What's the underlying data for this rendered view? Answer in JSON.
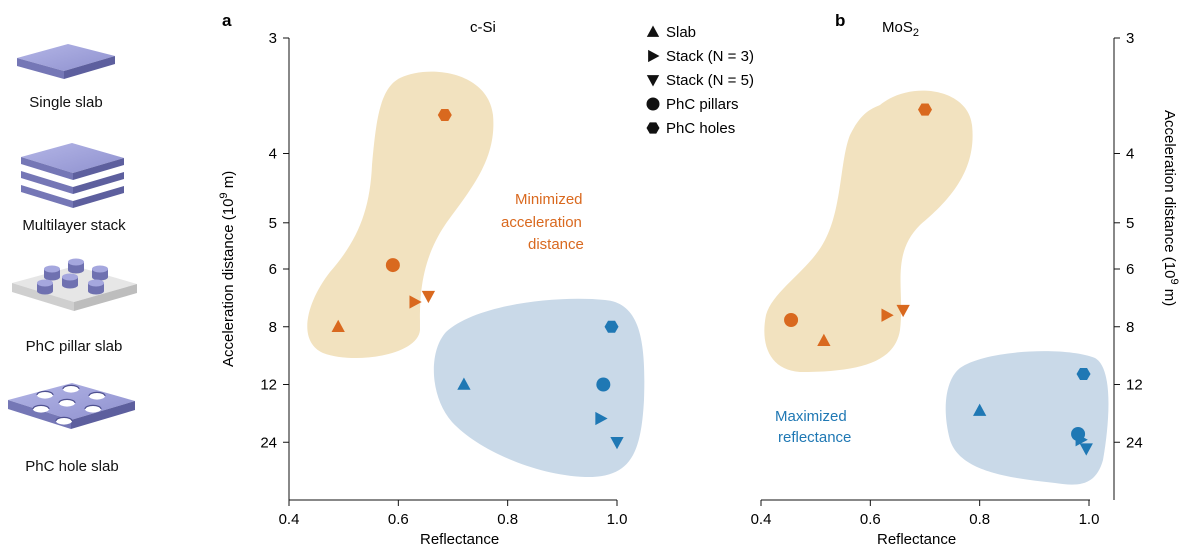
{
  "schematics": {
    "single_slab": "Single slab",
    "multilayer_stack": "Multilayer stack",
    "pillar_slab": "PhC pillar slab",
    "hole_slab": "PhC hole slab"
  },
  "colors": {
    "orange": "#d9691f",
    "blue": "#1f78b4",
    "beige_region": "#f2e2bf",
    "blue_region": "#c9d9e8",
    "slab_top": "#9ea0d8",
    "slab_side": "#6f71b0",
    "pillar_base": "#e2e2e2"
  },
  "legend": {
    "slab": "Slab",
    "stack3": "Stack (N = 3)",
    "stack5": "Stack (N = 5)",
    "pillars": "PhC pillars",
    "holes": "PhC holes",
    "placement": "top-center"
  },
  "annotations": {
    "minimized": [
      "Minimized",
      "acceleration",
      "distance"
    ],
    "maximized": [
      "Maximized",
      "reflectance"
    ]
  },
  "chart_data": [
    {
      "panel": "a",
      "type": "scatter",
      "title": "c-Si",
      "xlabel": "Reflectance",
      "ylabel_left": "Acceleration distance (10",
      "ylabel_exp": "9",
      "ylabel_unit": " m)",
      "xlim": [
        0.4,
        1.0
      ],
      "xticks": [
        "0.4",
        "0.6",
        "0.8",
        "1.0"
      ],
      "yticks": [
        "3",
        "4",
        "5",
        "6",
        "8",
        "12",
        "24"
      ],
      "series": [
        {
          "name": "Slab",
          "marker": "triangle-up",
          "points": [
            {
              "x": 0.49,
              "y": 8,
              "group": "orange"
            },
            {
              "x": 0.72,
              "y": 12,
              "group": "blue"
            }
          ]
        },
        {
          "name": "Stack (N = 3)",
          "marker": "triangle-right",
          "points": [
            {
              "x": 0.63,
              "y": 7,
              "group": "orange"
            },
            {
              "x": 0.97,
              "y": 17,
              "group": "blue"
            }
          ]
        },
        {
          "name": "Stack (N = 5)",
          "marker": "triangle-down",
          "points": [
            {
              "x": 0.655,
              "y": 6.8,
              "group": "orange"
            },
            {
              "x": 1.0,
              "y": 24,
              "group": "blue"
            }
          ]
        },
        {
          "name": "PhC pillars",
          "marker": "circle",
          "points": [
            {
              "x": 0.59,
              "y": 5.9,
              "group": "orange"
            },
            {
              "x": 0.975,
              "y": 12,
              "group": "blue"
            }
          ]
        },
        {
          "name": "PhC holes",
          "marker": "hexagon",
          "points": [
            {
              "x": 0.685,
              "y": 3.6,
              "group": "orange"
            },
            {
              "x": 0.99,
              "y": 8,
              "group": "blue"
            }
          ]
        }
      ]
    },
    {
      "panel": "b",
      "type": "scatter",
      "title": "MoS",
      "title_sub": "2",
      "xlabel": "Reflectance",
      "ylabel_right": "Acceleration distance (10",
      "ylabel_exp": "9",
      "ylabel_unit": " m)",
      "xlim": [
        0.4,
        1.0
      ],
      "xticks": [
        "0.4",
        "0.6",
        "0.8",
        "1.0"
      ],
      "yticks": [
        "3",
        "4",
        "5",
        "6",
        "8",
        "12",
        "24"
      ],
      "series": [
        {
          "name": "Slab",
          "marker": "triangle-up",
          "points": [
            {
              "x": 0.515,
              "y": 8.7,
              "group": "orange"
            },
            {
              "x": 0.8,
              "y": 15.5,
              "group": "blue"
            }
          ]
        },
        {
          "name": "Stack (N = 3)",
          "marker": "triangle-right",
          "points": [
            {
              "x": 0.63,
              "y": 7.5,
              "group": "orange"
            },
            {
              "x": 0.985,
              "y": 23,
              "group": "blue"
            }
          ]
        },
        {
          "name": "Stack (N = 5)",
          "marker": "triangle-down",
          "points": [
            {
              "x": 0.66,
              "y": 7.3,
              "group": "orange"
            },
            {
              "x": 0.995,
              "y": 27,
              "group": "blue"
            }
          ]
        },
        {
          "name": "PhC pillars",
          "marker": "circle",
          "points": [
            {
              "x": 0.455,
              "y": 7.7,
              "group": "orange"
            },
            {
              "x": 0.98,
              "y": 21,
              "group": "blue"
            }
          ]
        },
        {
          "name": "PhC holes",
          "marker": "hexagon",
          "points": [
            {
              "x": 0.7,
              "y": 3.55,
              "group": "orange"
            },
            {
              "x": 0.99,
              "y": 11,
              "group": "blue"
            }
          ]
        }
      ]
    }
  ]
}
